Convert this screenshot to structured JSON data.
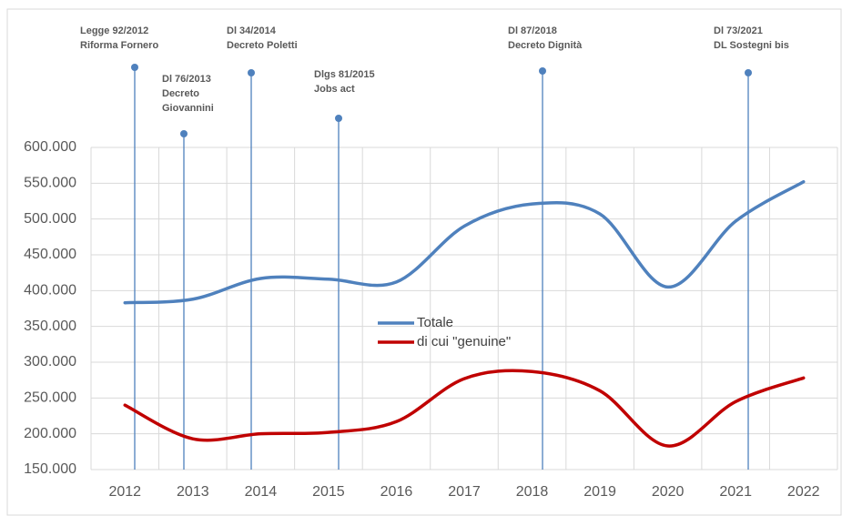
{
  "chart_data": {
    "type": "line",
    "categories": [
      "2012",
      "2013",
      "2014",
      "2015",
      "2016",
      "2017",
      "2018",
      "2019",
      "2020",
      "2021",
      "2022"
    ],
    "series": [
      {
        "name": "Totale",
        "color": "#4f81bd",
        "values": [
          383000,
          388000,
          417000,
          416000,
          412000,
          490000,
          521000,
          507000,
          405000,
          497000,
          552000
        ]
      },
      {
        "name": "di cui \"genuine\"",
        "color": "#c00000",
        "values": [
          240000,
          193000,
          200000,
          202000,
          217000,
          277000,
          287000,
          260000,
          183000,
          245000,
          278000
        ]
      }
    ],
    "ylim": [
      150000,
      600000
    ],
    "yticks": [
      {
        "value": 150000,
        "label": "150.000"
      },
      {
        "value": 200000,
        "label": "200.000"
      },
      {
        "value": 250000,
        "label": "250.000"
      },
      {
        "value": 300000,
        "label": "300.000"
      },
      {
        "value": 350000,
        "label": "350.000"
      },
      {
        "value": 400000,
        "label": "400.000"
      },
      {
        "value": 450000,
        "label": "450.000"
      },
      {
        "value": 500000,
        "label": "500.000"
      },
      {
        "value": 550000,
        "label": "550.000"
      },
      {
        "value": 600000,
        "label": "600.000"
      }
    ],
    "grid": true,
    "annotations": [
      {
        "lines": [
          "Legge 92/2012",
          "Riforma Fornero"
        ]
      },
      {
        "lines": [
          "Dl 76/2013",
          "Decreto",
          "Giovannini"
        ]
      },
      {
        "lines": [
          "Dl 34/2014",
          "Decreto Poletti"
        ]
      },
      {
        "lines": [
          "Dlgs 81/2015",
          "Jobs act"
        ]
      },
      {
        "lines": [
          "Dl 87/2018",
          "Decreto Dignità"
        ]
      },
      {
        "lines": [
          "Dl 73/2021",
          "DL Sostegni bis"
        ]
      }
    ]
  }
}
